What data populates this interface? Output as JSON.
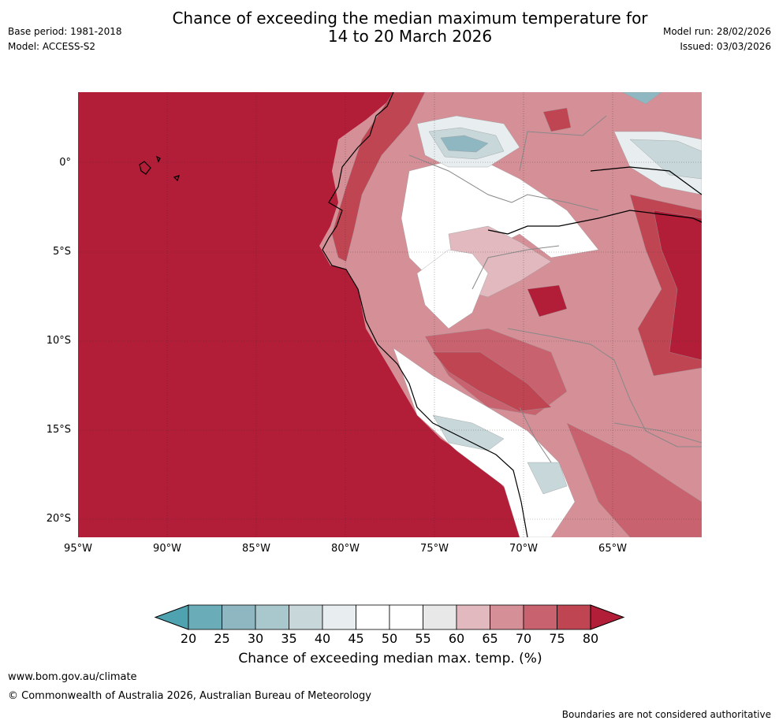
{
  "header": {
    "title_line1": "Chance of exceeding the median maximum temperature for",
    "title_line2": "14 to 20 March 2026",
    "base_period": "Base period: 1981-2018",
    "model": "Model: ACCESS-S2",
    "model_run": "Model run: 28/02/2026",
    "issued": "Issued: 03/03/2026"
  },
  "map": {
    "region": "Western South America",
    "lat_labels": [
      "0°",
      "5°S",
      "10°S",
      "15°S",
      "20°S"
    ],
    "lon_labels": [
      "95°W",
      "90°W",
      "85°W",
      "80°W",
      "75°W",
      "70°W",
      "65°W"
    ],
    "colors": {
      "ocean": "#b21d38",
      "p75_80": "#bf4553",
      "p70_75": "#c9626f",
      "p65_70": "#d58f97",
      "p60_65": "#e1b9be",
      "p55_60": "#e8e8e8",
      "p45_55": "#ffffff",
      "p40_45": "#e8eef0",
      "p35_40": "#c8d7da",
      "p30_35": "#a9c8ce",
      "p25_30": "#8fb7c2",
      "coast": "#000000",
      "border": "#888888"
    }
  },
  "colorbar": {
    "title": "Chance of exceeding median max. temp. (%)",
    "ticks": [
      "20",
      "25",
      "30",
      "35",
      "40",
      "45",
      "50",
      "55",
      "60",
      "65",
      "70",
      "75",
      "80"
    ],
    "colors": [
      "#6aadb9",
      "#8fb7c2",
      "#a9c8ce",
      "#c8d7da",
      "#e8eef0",
      "#ffffff",
      "#ffffff",
      "#e8e8e8",
      "#e1b9be",
      "#d58f97",
      "#c9626f",
      "#bf4553"
    ],
    "under_color": "#4fa3b1",
    "over_color": "#b21d38"
  },
  "footer": {
    "website": "www.bom.gov.au/climate",
    "copyright": "© Commonwealth of Australia 2026, Australian Bureau of Meteorology",
    "disclaimer": "Boundaries are not considered authoritative"
  }
}
